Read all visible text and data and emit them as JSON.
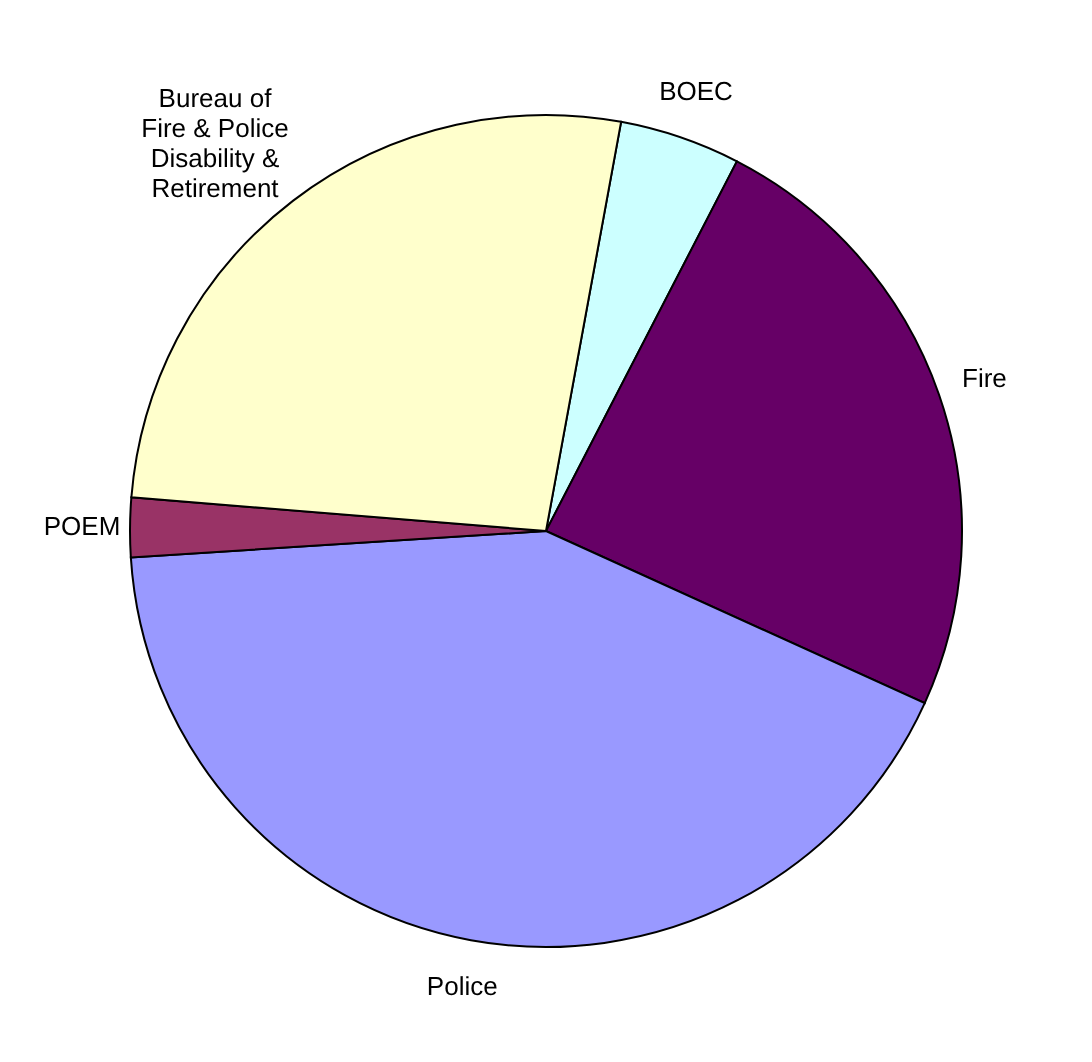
{
  "chart_data": {
    "type": "pie",
    "categories": [
      "BOEC",
      "Fire",
      "Police",
      "POEM",
      "Bureau of\nFire & Police\nDisability &\nRetirement"
    ],
    "values": [
      4.7,
      24.2,
      42.2,
      2.3,
      26.6
    ],
    "colors": [
      "#ccffff",
      "#660066",
      "#9999ff",
      "#993366",
      "#ffffcc"
    ]
  }
}
